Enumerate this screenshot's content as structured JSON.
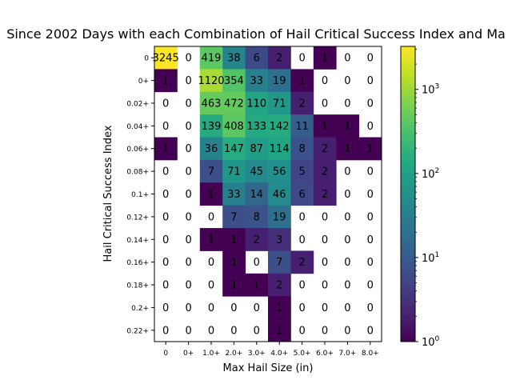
{
  "chart_data": {
    "type": "heatmap",
    "title": "Since 2002 Days with each Combination of Hail Critical Success Index and Ma",
    "xlabel": "Max Hail Size (in)",
    "ylabel": "Hail Critical Success Index",
    "x_categories": [
      "0",
      "0+",
      "1.0+",
      "2.0+",
      "3.0+",
      "4.0+",
      "5.0+",
      "6.0+",
      "7.0+",
      "8.0+"
    ],
    "y_categories": [
      "0",
      "0+",
      "0.02+",
      "0.04+",
      "0.06+",
      "0.08+",
      "0.1+",
      "0.12+",
      "0.14+",
      "0.16+",
      "0.18+",
      "0.2+",
      "0.22+"
    ],
    "values": [
      [
        3245,
        0,
        419,
        38,
        6,
        2,
        0,
        1,
        0,
        0
      ],
      [
        1,
        0,
        1120,
        354,
        33,
        19,
        1,
        0,
        0,
        0
      ],
      [
        0,
        0,
        463,
        472,
        110,
        71,
        2,
        0,
        0,
        0
      ],
      [
        0,
        0,
        139,
        408,
        133,
        142,
        11,
        1,
        1,
        0
      ],
      [
        1,
        0,
        36,
        147,
        87,
        114,
        8,
        2,
        1,
        1
      ],
      [
        0,
        0,
        7,
        71,
        45,
        56,
        5,
        2,
        0,
        0
      ],
      [
        0,
        0,
        1,
        33,
        14,
        46,
        6,
        2,
        0,
        0
      ],
      [
        0,
        0,
        0,
        7,
        8,
        19,
        0,
        0,
        0,
        0
      ],
      [
        0,
        0,
        1,
        1,
        2,
        3,
        0,
        0,
        0,
        0
      ],
      [
        0,
        0,
        0,
        1,
        0,
        7,
        2,
        0,
        0,
        0
      ],
      [
        0,
        0,
        0,
        1,
        1,
        2,
        0,
        0,
        0,
        0
      ],
      [
        0,
        0,
        0,
        0,
        0,
        1,
        0,
        0,
        0,
        0
      ],
      [
        0,
        0,
        0,
        0,
        0,
        1,
        0,
        0,
        0,
        0
      ]
    ],
    "colorscale": "viridis",
    "color_scale_type": "log",
    "colorbar_range": [
      1,
      3245
    ],
    "colorbar_ticks": [
      {
        "value": 1,
        "base": "10",
        "exp": "0"
      },
      {
        "value": 10,
        "base": "10",
        "exp": "1"
      },
      {
        "value": 100,
        "base": "10",
        "exp": "2"
      },
      {
        "value": 1000,
        "base": "10",
        "exp": "3"
      }
    ],
    "zero_cells": "blank",
    "grid": false,
    "legend": "colorbar-right"
  }
}
